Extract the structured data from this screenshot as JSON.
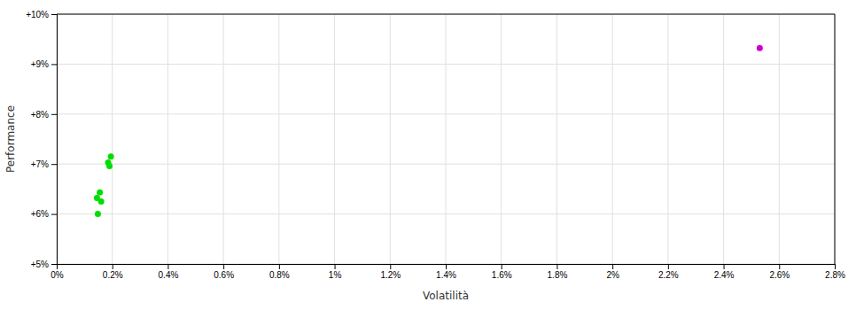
{
  "chart_data": {
    "type": "scatter",
    "xlabel": "Volatilità",
    "ylabel": "Performance",
    "xlim": [
      0.0,
      0.028
    ],
    "ylim": [
      0.05,
      0.1
    ],
    "xticks": [
      {
        "value": 0.0,
        "label": "0%"
      },
      {
        "value": 0.002,
        "label": "0.2%"
      },
      {
        "value": 0.004,
        "label": "0.4%"
      },
      {
        "value": 0.006,
        "label": "0.6%"
      },
      {
        "value": 0.008,
        "label": "0.8%"
      },
      {
        "value": 0.01,
        "label": "1%"
      },
      {
        "value": 0.012,
        "label": "1.2%"
      },
      {
        "value": 0.014,
        "label": "1.4%"
      },
      {
        "value": 0.016,
        "label": "1.6%"
      },
      {
        "value": 0.018,
        "label": "1.8%"
      },
      {
        "value": 0.02,
        "label": "2%"
      },
      {
        "value": 0.022,
        "label": "2.2%"
      },
      {
        "value": 0.024,
        "label": "2.4%"
      },
      {
        "value": 0.026,
        "label": "2.6%"
      },
      {
        "value": 0.028,
        "label": "2.8%"
      }
    ],
    "yticks": [
      {
        "value": 0.05,
        "label": "+5%"
      },
      {
        "value": 0.06,
        "label": "+6%"
      },
      {
        "value": 0.07,
        "label": "+7%"
      },
      {
        "value": 0.08,
        "label": "+8%"
      },
      {
        "value": 0.09,
        "label": "+9%"
      },
      {
        "value": 0.1,
        "label": "+10%"
      }
    ],
    "grid": true,
    "series": [
      {
        "color": "#00dd00",
        "x": [
          0.00185,
          0.0019,
          0.00195,
          0.00145,
          0.00155,
          0.0016,
          0.00148
        ],
        "values": [
          0.0703,
          0.0696,
          0.0715,
          0.0632,
          0.0643,
          0.0625,
          0.06
        ]
      },
      {
        "color": "#cc00cc",
        "x": [
          0.0253
        ],
        "values": [
          0.0932
        ]
      }
    ]
  }
}
